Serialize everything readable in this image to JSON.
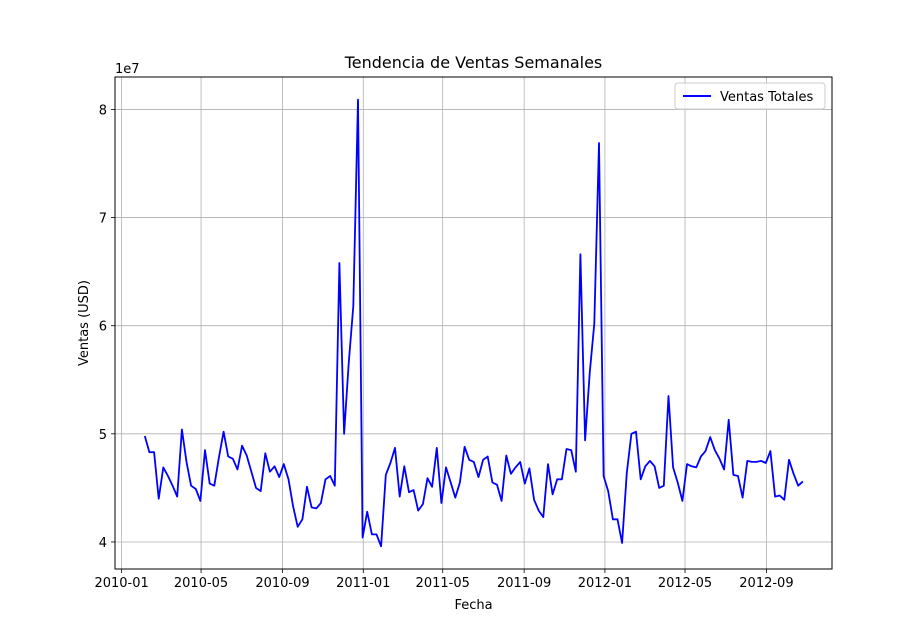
{
  "chart_data": {
    "type": "line",
    "title": "Tendencia de Ventas Semanales",
    "xlabel": "Fecha",
    "ylabel": "Ventas (USD)",
    "y_multiplier_label": "1e7",
    "x_ticks": [
      "2010-01",
      "2010-05",
      "2010-09",
      "2011-01",
      "2011-05",
      "2011-09",
      "2012-01",
      "2012-05",
      "2012-09"
    ],
    "y_ticks": [
      "4",
      "5",
      "6",
      "7",
      "8"
    ],
    "y_tick_values": [
      40000000,
      50000000,
      60000000,
      70000000,
      80000000
    ],
    "xlim": [
      "2009-12-22",
      "2012-12-09"
    ],
    "ylim": [
      37500000,
      83000000
    ],
    "grid": true,
    "legend_position": "top-right",
    "line_color": "#0000ff",
    "series": [
      {
        "name": "Ventas Totales",
        "x": [
          "2010-02-05",
          "2010-02-12",
          "2010-02-19",
          "2010-02-26",
          "2010-03-05",
          "2010-03-12",
          "2010-03-19",
          "2010-03-26",
          "2010-04-02",
          "2010-04-09",
          "2010-04-16",
          "2010-04-23",
          "2010-04-30",
          "2010-05-07",
          "2010-05-14",
          "2010-05-21",
          "2010-05-28",
          "2010-06-04",
          "2010-06-11",
          "2010-06-18",
          "2010-06-25",
          "2010-07-02",
          "2010-07-09",
          "2010-07-16",
          "2010-07-23",
          "2010-07-30",
          "2010-08-06",
          "2010-08-13",
          "2010-08-20",
          "2010-08-27",
          "2010-09-03",
          "2010-09-10",
          "2010-09-17",
          "2010-09-24",
          "2010-10-01",
          "2010-10-08",
          "2010-10-15",
          "2010-10-22",
          "2010-10-29",
          "2010-11-05",
          "2010-11-12",
          "2010-11-19",
          "2010-11-26",
          "2010-12-03",
          "2010-12-10",
          "2010-12-17",
          "2010-12-24",
          "2010-12-31",
          "2011-01-07",
          "2011-01-14",
          "2011-01-21",
          "2011-01-28",
          "2011-02-04",
          "2011-02-11",
          "2011-02-18",
          "2011-02-25",
          "2011-03-04",
          "2011-03-11",
          "2011-03-18",
          "2011-03-25",
          "2011-04-01",
          "2011-04-08",
          "2011-04-15",
          "2011-04-22",
          "2011-04-29",
          "2011-05-06",
          "2011-05-13",
          "2011-05-20",
          "2011-05-27",
          "2011-06-03",
          "2011-06-10",
          "2011-06-17",
          "2011-06-24",
          "2011-07-01",
          "2011-07-08",
          "2011-07-15",
          "2011-07-22",
          "2011-07-29",
          "2011-08-05",
          "2011-08-12",
          "2011-08-19",
          "2011-08-26",
          "2011-09-02",
          "2011-09-09",
          "2011-09-16",
          "2011-09-23",
          "2011-09-30",
          "2011-10-07",
          "2011-10-14",
          "2011-10-21",
          "2011-10-28",
          "2011-11-04",
          "2011-11-11",
          "2011-11-18",
          "2011-11-25",
          "2011-12-02",
          "2011-12-09",
          "2011-12-16",
          "2011-12-23",
          "2011-12-30",
          "2012-01-06",
          "2012-01-13",
          "2012-01-20",
          "2012-01-27",
          "2012-02-03",
          "2012-02-10",
          "2012-02-17",
          "2012-02-24",
          "2012-03-02",
          "2012-03-09",
          "2012-03-16",
          "2012-03-23",
          "2012-03-30",
          "2012-04-06",
          "2012-04-13",
          "2012-04-20",
          "2012-04-27",
          "2012-05-04",
          "2012-05-11",
          "2012-05-18",
          "2012-05-25",
          "2012-06-01",
          "2012-06-08",
          "2012-06-15",
          "2012-06-22",
          "2012-06-29",
          "2012-07-06",
          "2012-07-13",
          "2012-07-20",
          "2012-07-27",
          "2012-08-03",
          "2012-08-10",
          "2012-08-17",
          "2012-08-24",
          "2012-08-31",
          "2012-09-07",
          "2012-09-14",
          "2012-09-21",
          "2012-09-28",
          "2012-10-05",
          "2012-10-12",
          "2012-10-19",
          "2012-10-26"
        ],
        "y": [
          49800000,
          48300000,
          48300000,
          44000000,
          46900000,
          46100000,
          45200000,
          44200000,
          50400000,
          47400000,
          45200000,
          44900000,
          43800000,
          48500000,
          45400000,
          45200000,
          47800000,
          50200000,
          47900000,
          47700000,
          46700000,
          48900000,
          48000000,
          46500000,
          45000000,
          44700000,
          48200000,
          46500000,
          47000000,
          46000000,
          47200000,
          45800000,
          43300000,
          41400000,
          42100000,
          45100000,
          43200000,
          43100000,
          43600000,
          45800000,
          46100000,
          45200000,
          65800000,
          50000000,
          56500000,
          61800000,
          80900000,
          40400000,
          42800000,
          40700000,
          40700000,
          39600000,
          46200000,
          47300000,
          48700000,
          44200000,
          47000000,
          44600000,
          44800000,
          42900000,
          43500000,
          45900000,
          45100000,
          48700000,
          43600000,
          46900000,
          45500000,
          44100000,
          45500000,
          48800000,
          47600000,
          47400000,
          46000000,
          47600000,
          47900000,
          45500000,
          45300000,
          43800000,
          48000000,
          46300000,
          46900000,
          47400000,
          45400000,
          46800000,
          43900000,
          42900000,
          42300000,
          47200000,
          44400000,
          45800000,
          45800000,
          48600000,
          48500000,
          46500000,
          66600000,
          49400000,
          55600000,
          60200000,
          76900000,
          46100000,
          44700000,
          42100000,
          42100000,
          39900000,
          46400000,
          50000000,
          50200000,
          45800000,
          47000000,
          47500000,
          47000000,
          45000000,
          45200000,
          53500000,
          46900000,
          45500000,
          43800000,
          47200000,
          47000000,
          46900000,
          47900000,
          48400000,
          49700000,
          48500000,
          47700000,
          46700000,
          51300000,
          46200000,
          46100000,
          44100000,
          47500000,
          47400000,
          47400000,
          47500000,
          47300000,
          48400000,
          44200000,
          44300000,
          43900000,
          47600000,
          46300000,
          45200000,
          45600000
        ]
      }
    ]
  }
}
